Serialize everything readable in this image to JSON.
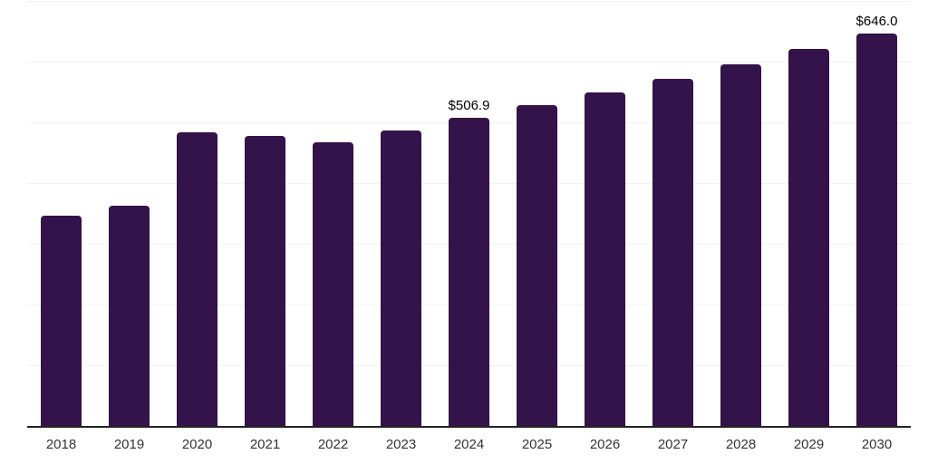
{
  "chart_data": {
    "type": "bar",
    "title": "",
    "xlabel": "",
    "ylabel": "",
    "categories": [
      "2018",
      "2019",
      "2020",
      "2021",
      "2022",
      "2023",
      "2024",
      "2025",
      "2026",
      "2027",
      "2028",
      "2029",
      "2030"
    ],
    "values": [
      346,
      363,
      484,
      477,
      467,
      487,
      506.9,
      527.8,
      549.5,
      572.2,
      595.8,
      620.3,
      646.0
    ],
    "point_labels": [
      null,
      null,
      null,
      null,
      null,
      null,
      "$506.9",
      null,
      null,
      null,
      null,
      null,
      "$646.0"
    ],
    "ylim": [
      0,
      700
    ],
    "gridline_interval": 100,
    "grid": "horizontal",
    "legend_position": "none",
    "bar_color": "#331349",
    "gridline_color": "#f2f2f2",
    "axis_line_color": "#222222",
    "axis_label_color": "#333333",
    "data_label_color": "#000000",
    "background_color": "#ffffff"
  }
}
